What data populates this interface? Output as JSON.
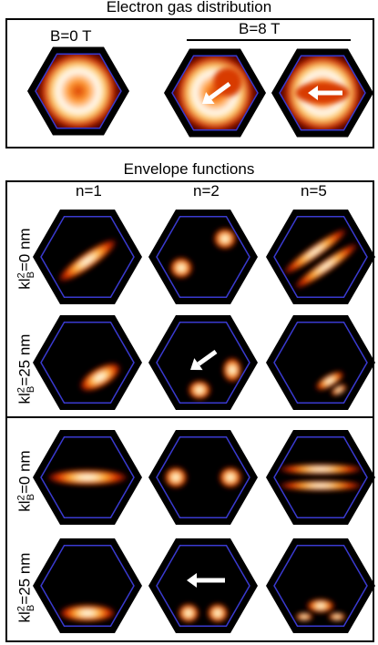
{
  "electron_gas": {
    "title": "Electron gas distribution",
    "b0_label": "B=0 T",
    "b8_label": "B=8 T"
  },
  "envelope": {
    "title": "Envelope functions",
    "columns": [
      "n=1",
      "n=2",
      "n=5"
    ],
    "row_labels": [
      {
        "main": "kl",
        "sup": "2",
        "sub": "B",
        "rest": "=0 nm"
      },
      {
        "main": "kl",
        "sup": "2",
        "sub": "B",
        "rest": "=25 nm"
      },
      {
        "main": "kl",
        "sup": "2",
        "sub": "B",
        "rest": "=0 nm"
      },
      {
        "main": "kl",
        "sup": "2",
        "sub": "B",
        "rest": "=25 nm"
      }
    ]
  },
  "colors": {
    "hex_outer": "#000000",
    "hex_inner_border": "#3a3ad0",
    "background": "#000000",
    "arrow": "#ffffff"
  }
}
